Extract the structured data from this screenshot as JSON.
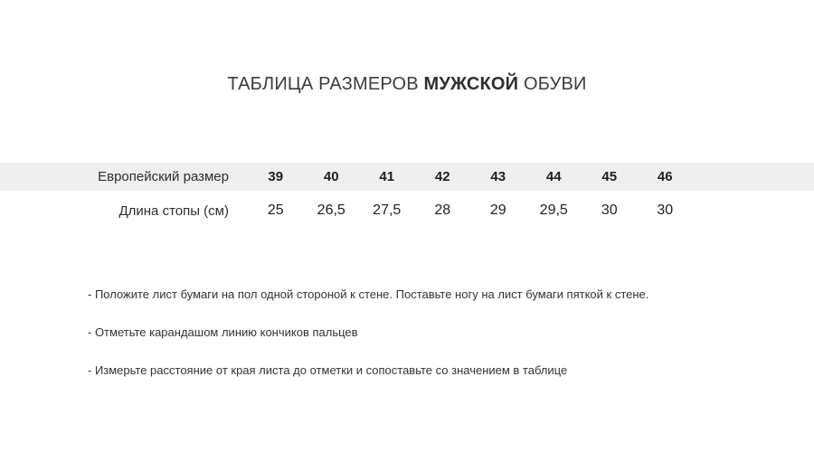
{
  "title": {
    "prefix": "ТАБЛИЦА РАЗМЕРОВ ",
    "emphasis": "МУЖСКОЙ",
    "suffix": " ОБУВИ"
  },
  "size_table": {
    "rows": [
      {
        "label": "Европейский размер",
        "values": [
          "39",
          "40",
          "41",
          "42",
          "43",
          "44",
          "45",
          "46"
        ]
      },
      {
        "label": "Длина стопы (см)",
        "values": [
          "25",
          "26,5",
          "27,5",
          "28",
          "29",
          "29,5",
          "30",
          "30"
        ]
      }
    ]
  },
  "instructions": [
    "- Положите лист бумаги на пол одной стороной к стене. Поставьте ногу на лист бумаги пяткой к стене.",
    "- Отметьте карандашом линию кончиков пальцев",
    "- Измерьте расстояние от края листа до отметки и сопоставьте со значением в таблице"
  ],
  "colors": {
    "row_shade": "#efefef",
    "title_text": "#3c3c3c",
    "body_text": "#333333"
  }
}
